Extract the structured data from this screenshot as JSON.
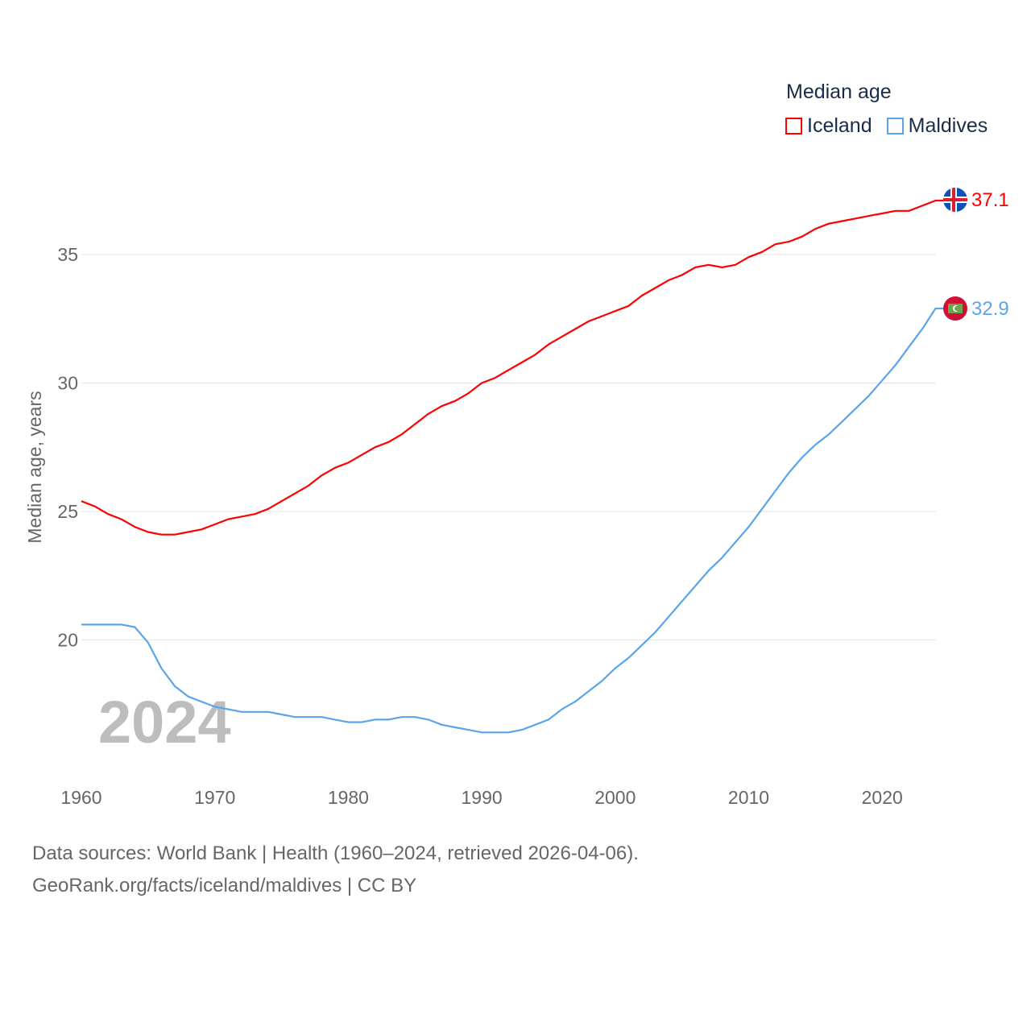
{
  "chart_data": {
    "type": "line",
    "title": "",
    "ylabel": "Median age, years",
    "xlabel": "",
    "ylim": [
      14.8,
      38.5
    ],
    "xlim": [
      1960,
      2024
    ],
    "yticks": [
      20,
      25,
      30,
      35
    ],
    "xticks": [
      1960,
      1970,
      1980,
      1990,
      2000,
      2010,
      2020
    ],
    "grid": true,
    "legend_title": "Median age",
    "legend_position": "top-right",
    "watermark_year": "2024",
    "x": [
      1960,
      1961,
      1962,
      1963,
      1964,
      1965,
      1966,
      1967,
      1968,
      1969,
      1970,
      1971,
      1972,
      1973,
      1974,
      1975,
      1976,
      1977,
      1978,
      1979,
      1980,
      1981,
      1982,
      1983,
      1984,
      1985,
      1986,
      1987,
      1988,
      1989,
      1990,
      1991,
      1992,
      1993,
      1994,
      1995,
      1996,
      1997,
      1998,
      1999,
      2000,
      2001,
      2002,
      2003,
      2004,
      2005,
      2006,
      2007,
      2008,
      2009,
      2010,
      2011,
      2012,
      2013,
      2014,
      2015,
      2016,
      2017,
      2018,
      2019,
      2020,
      2021,
      2022,
      2023,
      2024
    ],
    "series": [
      {
        "name": "Iceland",
        "color": "#ff0000",
        "end_label": "37.1",
        "values": [
          25.4,
          25.2,
          24.9,
          24.7,
          24.4,
          24.2,
          24.1,
          24.1,
          24.2,
          24.3,
          24.5,
          24.7,
          24.8,
          24.9,
          25.1,
          25.4,
          25.7,
          26.0,
          26.4,
          26.7,
          26.9,
          27.2,
          27.5,
          27.7,
          28.0,
          28.4,
          28.8,
          29.1,
          29.3,
          29.6,
          30.0,
          30.2,
          30.5,
          30.8,
          31.1,
          31.5,
          31.8,
          32.1,
          32.4,
          32.6,
          32.8,
          33.0,
          33.4,
          33.7,
          34.0,
          34.2,
          34.5,
          34.6,
          34.5,
          34.6,
          34.9,
          35.1,
          35.4,
          35.5,
          35.7,
          36.0,
          36.2,
          36.3,
          36.4,
          36.5,
          36.6,
          36.7,
          36.7,
          36.9,
          37.1
        ]
      },
      {
        "name": "Maldives",
        "color": "#5aa5ea",
        "end_label": "32.9",
        "values": [
          20.6,
          20.6,
          20.6,
          20.6,
          20.5,
          19.9,
          18.9,
          18.2,
          17.8,
          17.6,
          17.4,
          17.3,
          17.2,
          17.2,
          17.2,
          17.1,
          17.0,
          17.0,
          17.0,
          16.9,
          16.8,
          16.8,
          16.9,
          16.9,
          17.0,
          17.0,
          16.9,
          16.7,
          16.6,
          16.5,
          16.4,
          16.4,
          16.4,
          16.5,
          16.7,
          16.9,
          17.3,
          17.6,
          18.0,
          18.4,
          18.9,
          19.3,
          19.8,
          20.3,
          20.9,
          21.5,
          22.1,
          22.7,
          23.2,
          23.8,
          24.4,
          25.1,
          25.8,
          26.5,
          27.1,
          27.6,
          28.0,
          28.5,
          29.0,
          29.5,
          30.1,
          30.7,
          31.4,
          32.1,
          32.9
        ]
      }
    ]
  },
  "footer": {
    "sources": "Data sources: World Bank | Health (1960–2024, retrieved 2026-04-06).",
    "credit": "GeoRank.org/facts/iceland/maldives | CC BY"
  }
}
